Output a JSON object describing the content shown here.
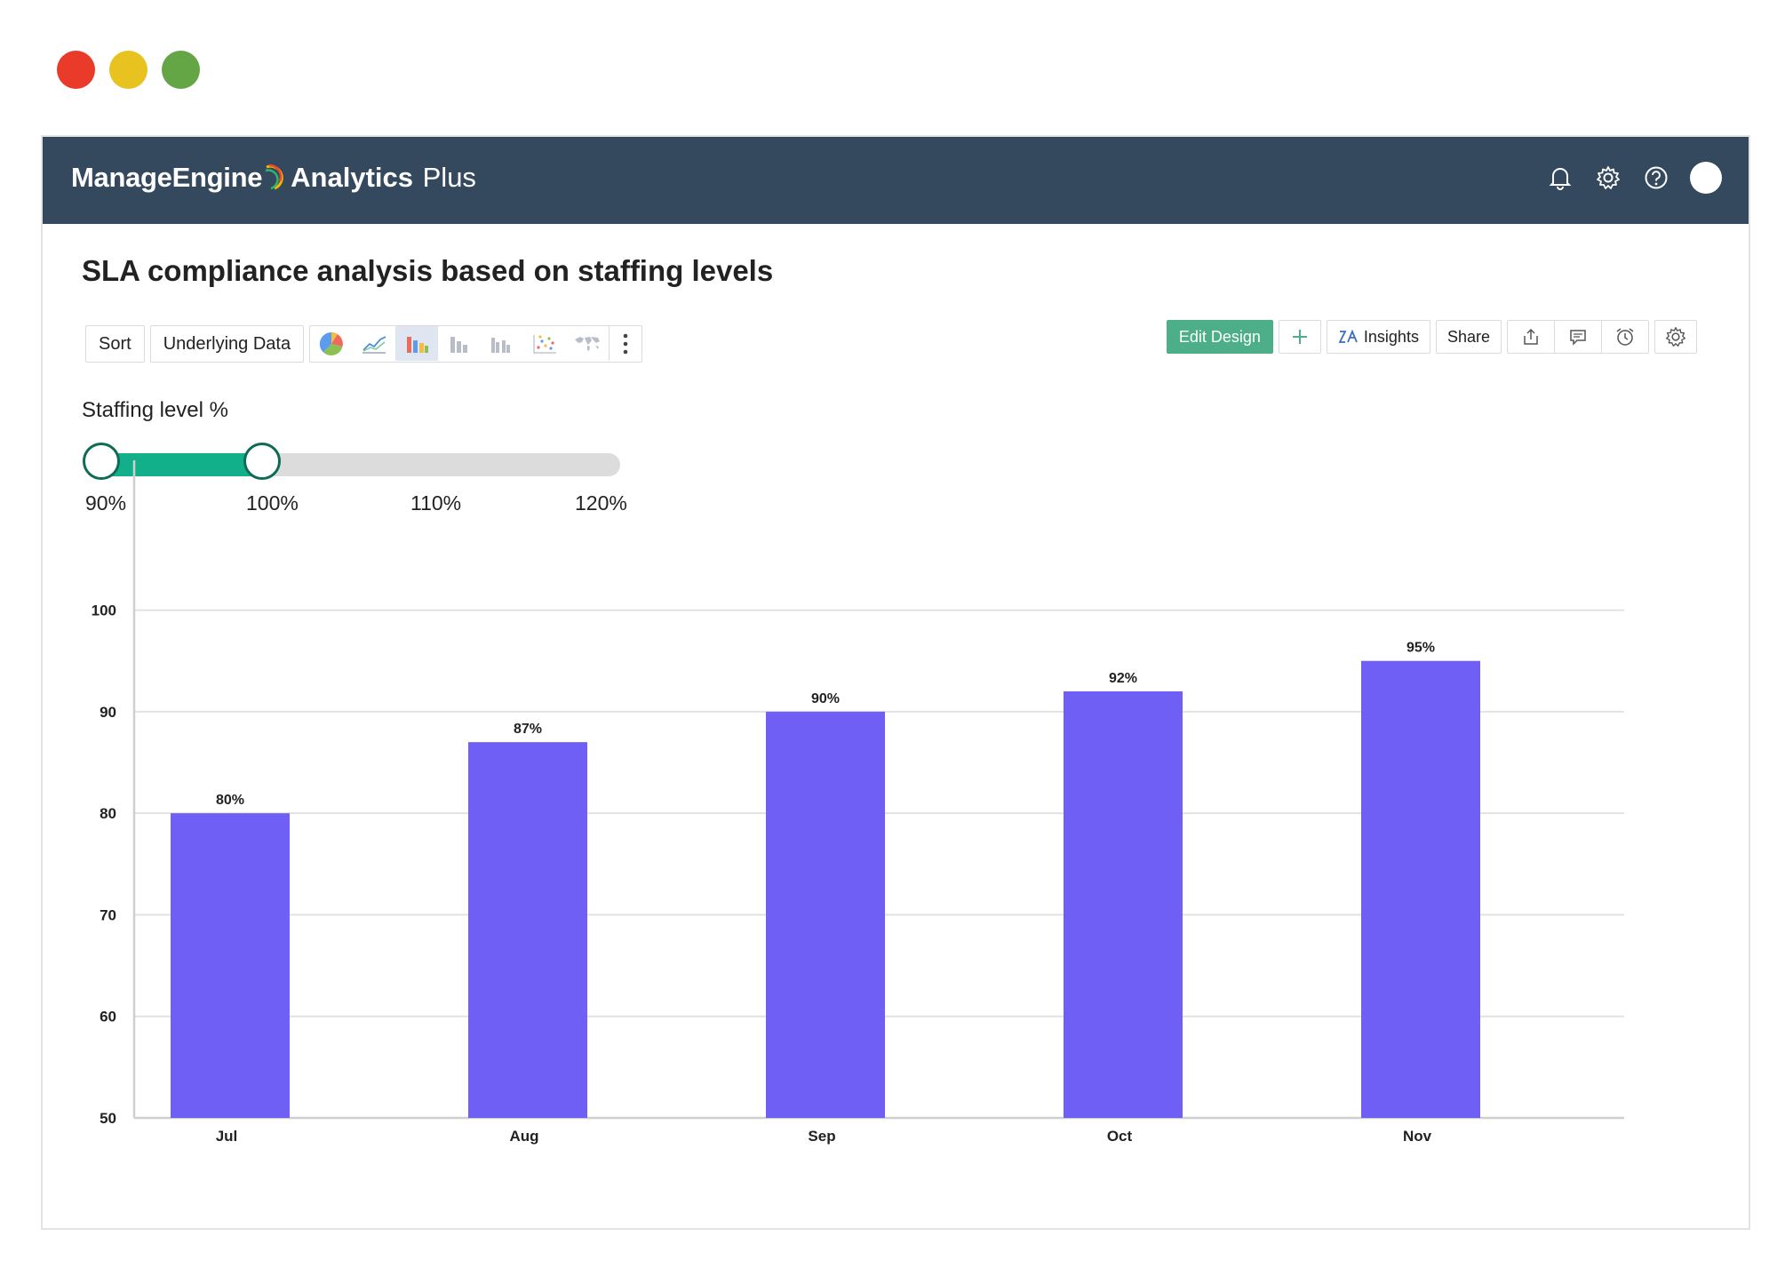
{
  "window_controls": {
    "close_color": "#ea3a2a",
    "minimize_color": "#e8c320",
    "maximize_color": "#64a646"
  },
  "header": {
    "brand_name": "ManageEngine",
    "product_name": "Analytics",
    "product_suffix": "Plus",
    "background_color": "#34495e",
    "icons": [
      "bell-icon",
      "gear-icon",
      "help-icon",
      "avatar"
    ]
  },
  "page": {
    "title": "SLA compliance analysis based on staffing levels"
  },
  "toolbar": {
    "sort_label": "Sort",
    "underlying_data_label": "Underlying Data",
    "chart_type_icons": [
      "pie-chart-icon",
      "line-chart-icon",
      "bar-chart-icon",
      "stacked-bar-icon",
      "grouped-bar-icon",
      "scatter-icon",
      "map-icon",
      "more-options-icon"
    ],
    "active_chart_type": "bar-chart-icon",
    "edit_design_label": "Edit Design",
    "insights_label": "Insights",
    "share_label": "Share",
    "accent_color": "#4caf8a"
  },
  "filter": {
    "label": "Staffing level %",
    "ticks": [
      "90%",
      "100%",
      "110%",
      "120%"
    ],
    "range_min": 90,
    "range_max": 120,
    "selected_low": 90,
    "selected_high": 100,
    "fill_color": "#12b08a"
  },
  "chart_data": {
    "type": "bar",
    "categories": [
      "Jul",
      "Aug",
      "Sep",
      "Oct",
      "Nov"
    ],
    "values": [
      80,
      87,
      90,
      92,
      95
    ],
    "data_labels": [
      "80%",
      "87%",
      "90%",
      "92%",
      "95%"
    ],
    "yticks": [
      50,
      60,
      70,
      80,
      90,
      100
    ],
    "ylim": [
      50,
      106
    ],
    "grid": true,
    "bar_color": "#6f5ff5",
    "title": "",
    "xlabel": "",
    "ylabel": ""
  }
}
